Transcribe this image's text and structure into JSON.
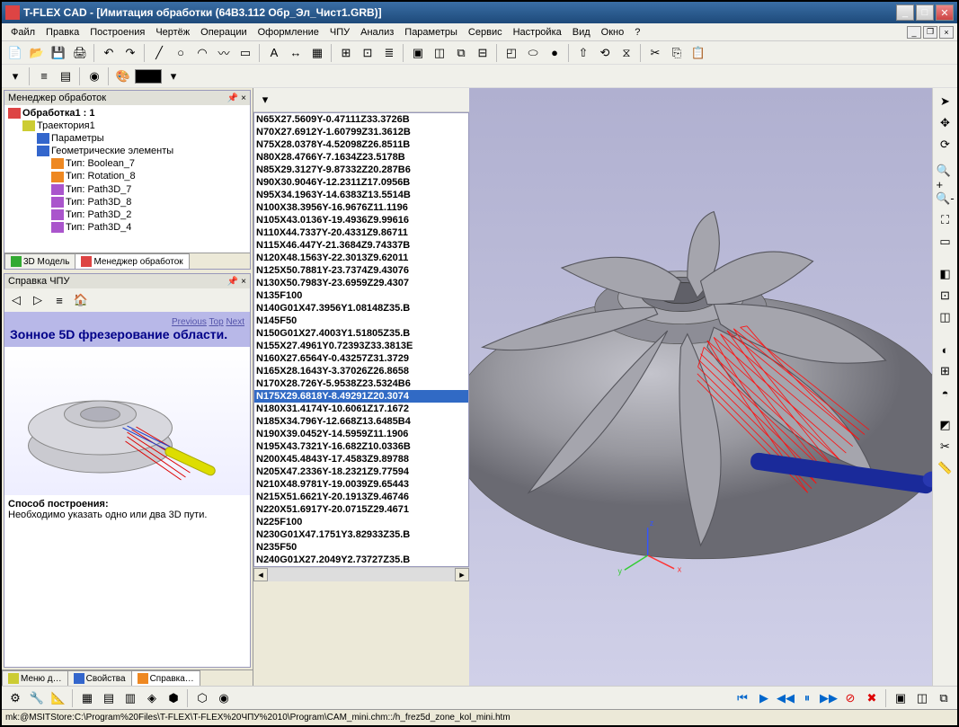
{
  "app_title": "T-FLEX CAD - [Имитация обработки (64В3.112 Обр_Эл_Чист1.GRB)]",
  "menu": [
    "Файл",
    "Правка",
    "Построения",
    "Чертёж",
    "Операции",
    "Оформление",
    "ЧПУ",
    "Анализ",
    "Параметры",
    "Сервис",
    "Настройка",
    "Вид",
    "Окно",
    "?"
  ],
  "panels": {
    "tree_title": "Менеджер обработок",
    "tree": [
      {
        "indent": 0,
        "icon": "ico-red",
        "label": "Обработка1 : 1",
        "bold": true
      },
      {
        "indent": 1,
        "icon": "ico-yel",
        "label": "Траектория1"
      },
      {
        "indent": 2,
        "icon": "ico-blu",
        "label": "Параметры"
      },
      {
        "indent": 2,
        "icon": "ico-blu",
        "label": "Геометрические элементы"
      },
      {
        "indent": 3,
        "icon": "ico-org",
        "label": "Тип: Boolean_7"
      },
      {
        "indent": 3,
        "icon": "ico-org",
        "label": "Тип: Rotation_8"
      },
      {
        "indent": 3,
        "icon": "ico-pur",
        "label": "Тип: Path3D_7"
      },
      {
        "indent": 3,
        "icon": "ico-pur",
        "label": "Тип: Path3D_8"
      },
      {
        "indent": 3,
        "icon": "ico-pur",
        "label": "Тип: Path3D_2"
      },
      {
        "indent": 3,
        "icon": "ico-pur",
        "label": "Тип: Path3D_4"
      }
    ],
    "tree_tabs": [
      {
        "label": "3D Модель",
        "icon": "ico-grn"
      },
      {
        "label": "Менеджер обработок",
        "icon": "ico-red"
      }
    ],
    "help_title_label": "Справка ЧПУ",
    "help_heading": "Зонное 5D фрезерование области.",
    "help_links": [
      "Previous",
      "Top",
      "Next"
    ],
    "help_section": "Способ построения:",
    "help_body": "Необходимо указать одно или два 3D пути.",
    "bottom_tabs": [
      {
        "label": "Меню д…",
        "icon": "ico-yel"
      },
      {
        "label": "Свойства",
        "icon": "ico-blu"
      },
      {
        "label": "Справка…",
        "icon": "ico-org"
      }
    ]
  },
  "gcode": {
    "lines": [
      "N65X27.5609Y-0.47111Z33.3726B",
      "N70X27.6912Y-1.60799Z31.3612B",
      "N75X28.0378Y-4.52098Z26.8511B",
      "N80X28.4766Y-7.1634Z23.5178B",
      "N85X29.3127Y-9.87332Z20.287B6",
      "N90X30.9046Y-12.2311Z17.0956B",
      "N95X34.1963Y-14.6383Z13.5514B",
      "N100X38.3956Y-16.9676Z11.1196",
      "N105X43.0136Y-19.4936Z9.99616",
      "N110X44.7337Y-20.4331Z9.86711",
      "N115X46.447Y-21.3684Z9.74337B",
      "N120X48.1563Y-22.3013Z9.62011",
      "N125X50.7881Y-23.7374Z9.43076",
      "N130X50.7983Y-23.6959Z29.4307",
      "N135F100",
      "N140G01X47.3956Y1.08148Z35.B",
      "N145F50",
      "N150G01X27.4003Y1.51805Z35.B",
      "N155X27.4961Y0.72393Z33.3813E",
      "N160X27.6564Y-0.43257Z31.3729",
      "N165X28.1643Y-3.37026Z26.8658",
      "N170X28.726Y-5.9538Z23.5324B6",
      "N175X29.6818Y-8.49291Z20.3074",
      "N180X31.4174Y-10.6061Z17.1672",
      "N185X34.796Y-12.668Z13.6485B4",
      "N190X39.0452Y-14.5959Z11.1906",
      "N195X43.7321Y-16.682Z10.0336B",
      "N200X45.4843Y-17.4583Z9.89788",
      "N205X47.2336Y-18.2321Z9.77594",
      "N210X48.9781Y-19.0039Z9.65443",
      "N215X51.6621Y-20.1913Z9.46746",
      "N220X51.6917Y-20.0715Z29.4671",
      "N225F100",
      "N230G01X47.1751Y3.82933Z35.B",
      "N235F50",
      "N240G01X27.2049Y2.73727Z35.B"
    ],
    "selected_index": 22
  },
  "viewport": {
    "bg_top": "#b0b0d0",
    "bg_bot": "#d0d0e8",
    "part_fill": "#9a9aa5",
    "part_stroke": "#555560",
    "toolpath_color": "#ff0000",
    "tool_color": "#1a2a9a",
    "axis": {
      "x": "#ff3333",
      "y": "#33cc33",
      "z": "#3355ff"
    }
  },
  "status": "mk:@MSITStore:C:\\Program%20Files\\T-FLEX\\T-FLEX%20ЧПУ%2010\\Program\\CAM_mini.chm::/h_frez5d_zone_kol_mini.htm",
  "playback": {
    "icons": [
      "⏮",
      "▶",
      "⏸",
      "⏭",
      "⏹",
      "✖",
      "⚙"
    ]
  }
}
